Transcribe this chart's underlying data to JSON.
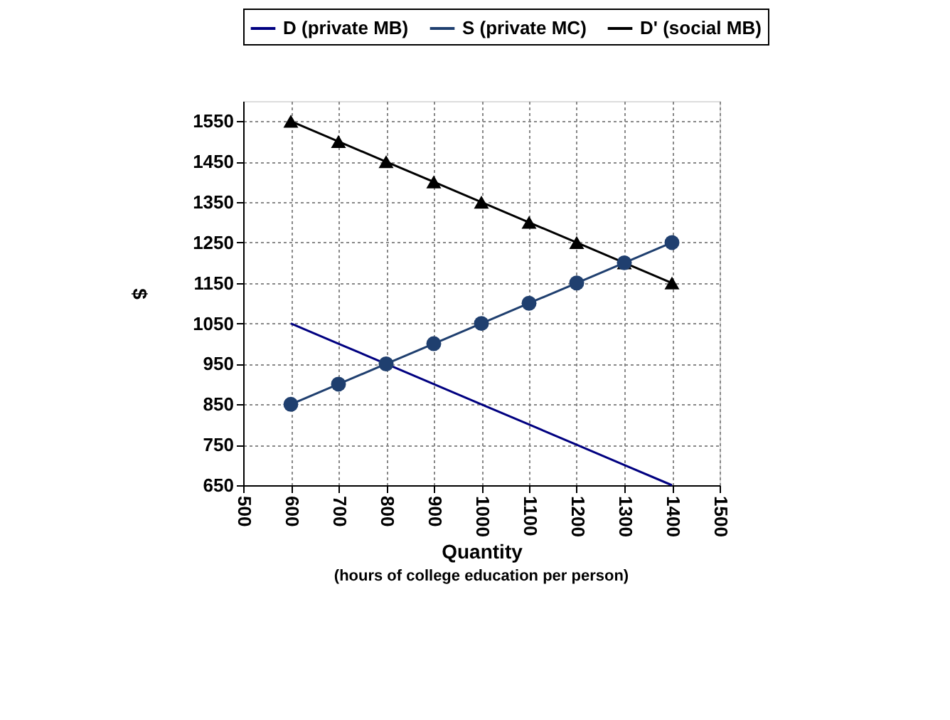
{
  "chart_data": {
    "type": "line",
    "xlabel": "Quantity",
    "ylabel": "$",
    "annotations": [
      "(hours of college education per person)"
    ],
    "x": [
      600,
      700,
      800,
      900,
      1000,
      1100,
      1200,
      1300,
      1400
    ],
    "series": [
      {
        "name": "D (private MB)",
        "color": "#000080",
        "marker": "none",
        "values": [
          1050,
          1000,
          950,
          900,
          850,
          800,
          750,
          700,
          650
        ]
      },
      {
        "name": "S (private MC)",
        "color": "#1f3f6f",
        "marker": "circle",
        "values": [
          850,
          900,
          950,
          1000,
          1050,
          1100,
          1150,
          1200,
          1250
        ]
      },
      {
        "name": "D' (social MB)",
        "color": "#000000",
        "marker": "triangle",
        "values": [
          1550,
          1500,
          1450,
          1400,
          1350,
          1300,
          1250,
          1200,
          1150
        ]
      }
    ],
    "xlim": [
      500,
      1500
    ],
    "xticks": [
      500,
      600,
      700,
      800,
      900,
      1000,
      1100,
      1200,
      1300,
      1400,
      1500
    ],
    "ylim": [
      650,
      1600
    ],
    "yticks": [
      650,
      750,
      850,
      950,
      1050,
      1150,
      1250,
      1350,
      1450,
      1550
    ],
    "grid": true,
    "legend": "top",
    "line_style": "solid"
  }
}
